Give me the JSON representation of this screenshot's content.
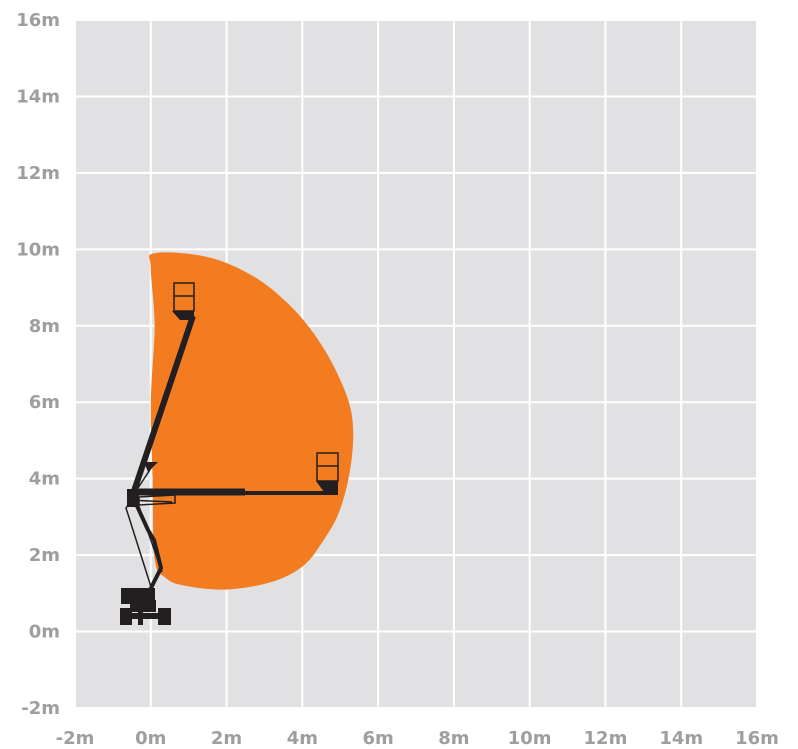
{
  "chart_data": {
    "type": "diagram",
    "x_ticks": [
      "-2m",
      "0m",
      "2m",
      "4m",
      "6m",
      "8m",
      "10m",
      "12m",
      "14m",
      "16m"
    ],
    "y_ticks": [
      "16m",
      "14m",
      "12m",
      "10m",
      "8m",
      "6m",
      "4m",
      "2m",
      "0m",
      "-2m"
    ],
    "x_range": [
      -2,
      16
    ],
    "y_range": [
      -2,
      16
    ],
    "grid": true,
    "working_envelope": [
      [
        0.1,
        9.9
      ],
      [
        1.5,
        9.8
      ],
      [
        2.7,
        9.3
      ],
      [
        3.6,
        8.6
      ],
      [
        4.3,
        7.8
      ],
      [
        4.9,
        6.8
      ],
      [
        5.3,
        5.7
      ],
      [
        5.3,
        4.5
      ],
      [
        5.0,
        3.2
      ],
      [
        4.5,
        2.3
      ],
      [
        4.0,
        1.7
      ],
      [
        3.2,
        1.3
      ],
      [
        2.0,
        1.1
      ],
      [
        0.9,
        1.2
      ],
      [
        0.4,
        1.4
      ],
      [
        0.1,
        1.9
      ],
      [
        0.05,
        4
      ],
      [
        0.0,
        6
      ],
      [
        0.1,
        8
      ],
      [
        0.0,
        9.5
      ]
    ],
    "colors": {
      "background": "#e1e1e3",
      "grid": "#ffffff",
      "envelope": "#f47c20",
      "machine": "#231f20",
      "tick_text": "#9e9e9e"
    }
  }
}
